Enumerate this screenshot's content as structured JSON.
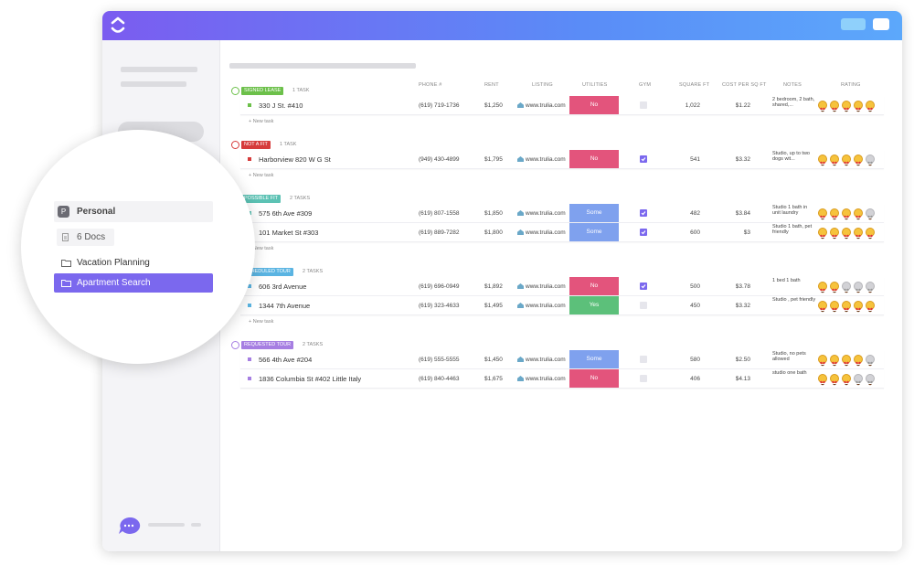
{
  "sidebar": {
    "workspace_initial": "P",
    "workspace": "Personal",
    "docs": "6 Docs",
    "folders": [
      "Vacation Planning",
      "Apartment Search"
    ]
  },
  "columns": [
    "PHONE #",
    "RENT",
    "LISTING",
    "UTILITIES",
    "GYM",
    "SQUARE FT",
    "COST PER SQ FT",
    "NOTES",
    "RATING"
  ],
  "new_task": "+ New task",
  "groups": [
    {
      "status": "SIGNED LEASE",
      "color": "#6cc04a",
      "count": "1 TASK",
      "rows": [
        {
          "name": "330 J St. #410",
          "phone": "(619) 719-1736",
          "rent": "$1,250",
          "listing": "www.trulia.com",
          "utilities": {
            "label": "No",
            "color": "#e3547c"
          },
          "gym": false,
          "sqft": "1,022",
          "cost": "$1.22",
          "notes": "2 bedroom, 2 bath, shared,...",
          "rating": 5
        }
      ]
    },
    {
      "status": "NOT A FIT",
      "color": "#d63b3b",
      "count": "1 TASK",
      "rows": [
        {
          "name": "Harborview 820 W G St",
          "phone": "(949) 430-4899",
          "rent": "$1,795",
          "listing": "www.trulia.com",
          "utilities": {
            "label": "No",
            "color": "#e3547c"
          },
          "gym": true,
          "sqft": "541",
          "cost": "$3.32",
          "notes": "Studio, up to two dogs wit...",
          "rating": 4
        }
      ]
    },
    {
      "status": "POSSIBLE FIT",
      "color": "#5cc2b4",
      "count": "2 TASKS",
      "rows": [
        {
          "name": "575 6th Ave #309",
          "phone": "(619) 807-1558",
          "rent": "$1,850",
          "listing": "www.trulia.com",
          "utilities": {
            "label": "Some",
            "color": "#7fa1ee"
          },
          "gym": true,
          "sqft": "482",
          "cost": "$3.84",
          "notes": "Studio 1 bath in unit laundry",
          "rating": 4
        },
        {
          "name": "101 Market St #303",
          "phone": "(619) 889-7282",
          "rent": "$1,800",
          "listing": "www.trulia.com",
          "utilities": {
            "label": "Some",
            "color": "#7fa1ee"
          },
          "gym": true,
          "sqft": "600",
          "cost": "$3",
          "notes": "Studio 1 bath, pet friendly",
          "rating": 5
        }
      ]
    },
    {
      "status": "SCHEDULED TOUR",
      "color": "#5ab4e2",
      "count": "2 TASKS",
      "rows": [
        {
          "name": "606 3rd Avenue",
          "phone": "(619) 696-0949",
          "rent": "$1,892",
          "listing": "www.trulia.com",
          "utilities": {
            "label": "No",
            "color": "#e3547c"
          },
          "gym": true,
          "sqft": "500",
          "cost": "$3.78",
          "notes": "1 bed 1 bath",
          "rating": 2
        },
        {
          "name": "1344 7th Avenue",
          "phone": "(619) 323-4633",
          "rent": "$1,495",
          "listing": "www.trulia.com",
          "utilities": {
            "label": "Yes",
            "color": "#5cc07a"
          },
          "gym": false,
          "sqft": "450",
          "cost": "$3.32",
          "notes": "Studio , pet friendly",
          "rating": 5
        }
      ]
    },
    {
      "status": "REQUESTED TOUR",
      "color": "#a67ee2",
      "count": "2 TASKS",
      "rows": [
        {
          "name": "566 4th Ave #204",
          "phone": "(619) 555-5555",
          "rent": "$1,450",
          "listing": "www.trulia.com",
          "utilities": {
            "label": "Some",
            "color": "#7fa1ee"
          },
          "gym": false,
          "sqft": "580",
          "cost": "$2.50",
          "notes": "Studio, no pets allowed",
          "rating": 4
        },
        {
          "name": "1836 Columbia St #402 Little Italy",
          "phone": "(619) 840-4463",
          "rent": "$1,675",
          "listing": "www.trulia.com",
          "utilities": {
            "label": "No",
            "color": "#e3547c"
          },
          "gym": false,
          "sqft": "406",
          "cost": "$4.13",
          "notes": "studio one bath",
          "rating": 3
        }
      ]
    }
  ]
}
